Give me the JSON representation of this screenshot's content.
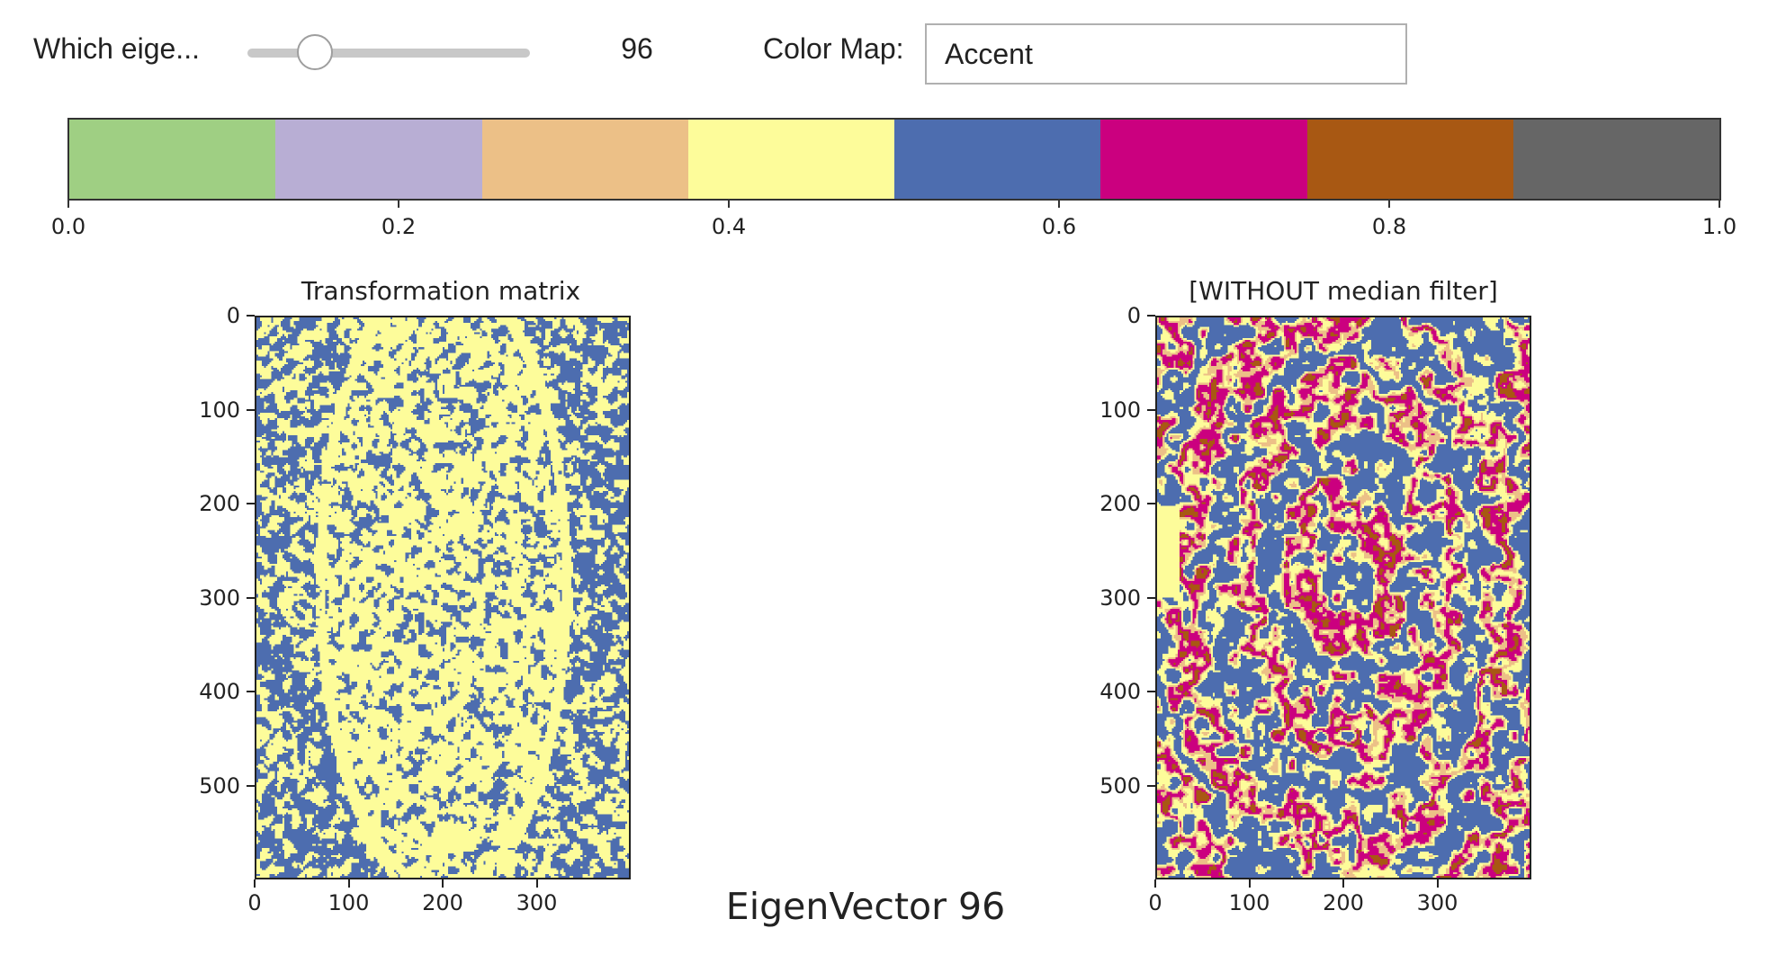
{
  "widgets": {
    "eigen_slider": {
      "label": "Which eige...",
      "value": 96,
      "min": 0,
      "max": 400
    },
    "color_map": {
      "label": "Color Map:",
      "value": "Accent"
    }
  },
  "colorbar": {
    "colors": [
      "#9fcf83",
      "#b8aed4",
      "#ecc087",
      "#fdfc9a",
      "#4d6daf",
      "#cb007f",
      "#a85813",
      "#666666"
    ],
    "ticks": [
      "0.0",
      "0.2",
      "0.4",
      "0.6",
      "0.8",
      "1.0"
    ]
  },
  "plots": [
    {
      "id": "transform",
      "title": "Transformation matrix",
      "yticks": [
        "0",
        "100",
        "200",
        "300",
        "400",
        "500"
      ],
      "xticks": [
        "0",
        "100",
        "200",
        "300"
      ]
    },
    {
      "id": "nomedian",
      "title": "[WITHOUT median filter]",
      "yticks": [
        "0",
        "100",
        "200",
        "300",
        "400",
        "500"
      ],
      "xticks": [
        "0",
        "100",
        "200",
        "300"
      ]
    }
  ],
  "suptitle": "EigenVector 96",
  "chart_data": [
    {
      "type": "heatmap",
      "title": "Transformation matrix",
      "xlim": [
        0,
        400
      ],
      "ylim": [
        600,
        0
      ],
      "colormap": "Accent",
      "note_colors": [
        "#4d6daf",
        "#fdfc9a",
        "#cb007f"
      ]
    },
    {
      "type": "heatmap",
      "title": "[WITHOUT median filter]",
      "xlim": [
        0,
        400
      ],
      "ylim": [
        600,
        0
      ],
      "colormap": "Accent",
      "note_colors": [
        "#4d6daf",
        "#fdfc9a",
        "#ecc087",
        "#cb007f",
        "#a85813"
      ]
    }
  ]
}
